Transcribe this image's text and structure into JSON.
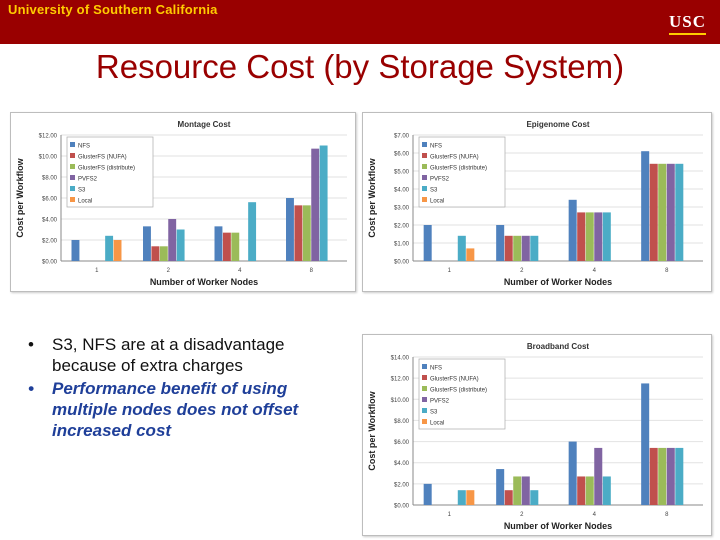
{
  "header": {
    "university": "University of Southern California",
    "logo": "USC"
  },
  "slide": {
    "title": "Resource Cost (by Storage System)",
    "bullets": [
      "S3, NFS are at a disadvantage because of extra charges",
      "Performance benefit of using multiple nodes does not offset increased cost"
    ]
  },
  "colors": {
    "header_bg": "#990000",
    "header_text": "#ffcc00",
    "title": "#990000",
    "bullet2": "#1f3f99",
    "series": [
      "#4f81bd",
      "#c0504d",
      "#9bbb59",
      "#8064a2",
      "#4bacc6",
      "#f79646"
    ]
  },
  "chart_data": [
    {
      "type": "bar",
      "title": "Montage Cost",
      "xlabel": "Number of Worker Nodes",
      "ylabel": "Cost per Workflow",
      "categories": [
        "1",
        "2",
        "4",
        "8"
      ],
      "ylim": [
        0,
        12
      ],
      "yticks": [
        "$0.00",
        "$2.00",
        "$4.00",
        "$6.00",
        "$8.00",
        "$10.00",
        "$12.00"
      ],
      "legend": "top-left",
      "series": [
        {
          "name": "NFS",
          "values": [
            2.0,
            3.3,
            3.3,
            6.0
          ]
        },
        {
          "name": "GlusterFS (NUFA)",
          "values": [
            null,
            1.4,
            2.7,
            5.3
          ]
        },
        {
          "name": "GlusterFS (distribute)",
          "values": [
            null,
            1.4,
            2.7,
            5.3
          ]
        },
        {
          "name": "PVFS2",
          "values": [
            null,
            4.0,
            null,
            10.7
          ]
        },
        {
          "name": "S3",
          "values": [
            2.4,
            3.0,
            5.6,
            11.0
          ]
        },
        {
          "name": "Local",
          "values": [
            2.0,
            null,
            null,
            null
          ]
        }
      ]
    },
    {
      "type": "bar",
      "title": "Epigenome Cost",
      "xlabel": "Number of Worker Nodes",
      "ylabel": "Cost per Workflow",
      "categories": [
        "1",
        "2",
        "4",
        "8"
      ],
      "ylim": [
        0,
        7
      ],
      "yticks": [
        "$0.00",
        "$1.00",
        "$2.00",
        "$3.00",
        "$4.00",
        "$5.00",
        "$6.00",
        "$7.00"
      ],
      "legend": "top-left",
      "series": [
        {
          "name": "NFS",
          "values": [
            2.0,
            2.0,
            3.4,
            6.1
          ]
        },
        {
          "name": "GlusterFS (NUFA)",
          "values": [
            null,
            1.4,
            2.7,
            5.4
          ]
        },
        {
          "name": "GlusterFS (distribute)",
          "values": [
            null,
            1.4,
            2.7,
            5.4
          ]
        },
        {
          "name": "PVFS2",
          "values": [
            null,
            1.4,
            2.7,
            5.4
          ]
        },
        {
          "name": "S3",
          "values": [
            1.4,
            1.4,
            2.7,
            5.4
          ]
        },
        {
          "name": "Local",
          "values": [
            0.7,
            null,
            null,
            null
          ]
        }
      ]
    },
    {
      "type": "bar",
      "title": "Broadband Cost",
      "xlabel": "Number of Worker Nodes",
      "ylabel": "Cost per Workflow",
      "categories": [
        "1",
        "2",
        "4",
        "8"
      ],
      "ylim": [
        0,
        14
      ],
      "yticks": [
        "$0.00",
        "$2.00",
        "$4.00",
        "$6.00",
        "$8.00",
        "$10.00",
        "$12.00",
        "$14.00"
      ],
      "legend": "top-left",
      "series": [
        {
          "name": "NFS",
          "values": [
            2.0,
            3.4,
            6.0,
            11.5
          ]
        },
        {
          "name": "GlusterFS (NUFA)",
          "values": [
            null,
            1.4,
            2.7,
            5.4
          ]
        },
        {
          "name": "GlusterFS (distribute)",
          "values": [
            null,
            2.7,
            2.7,
            5.4
          ]
        },
        {
          "name": "PVFS2",
          "values": [
            null,
            2.7,
            5.4,
            5.4
          ]
        },
        {
          "name": "S3",
          "values": [
            1.4,
            1.4,
            2.7,
            5.4
          ]
        },
        {
          "name": "Local",
          "values": [
            1.4,
            null,
            null,
            null
          ]
        }
      ]
    }
  ]
}
